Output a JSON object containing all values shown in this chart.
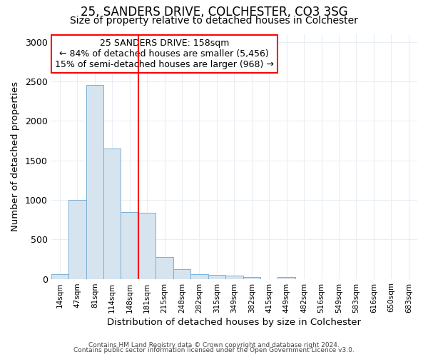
{
  "title1": "25, SANDERS DRIVE, COLCHESTER, CO3 3SG",
  "title2": "Size of property relative to detached houses in Colchester",
  "xlabel": "Distribution of detached houses by size in Colchester",
  "ylabel": "Number of detached properties",
  "categories": [
    "14sqm",
    "47sqm",
    "81sqm",
    "114sqm",
    "148sqm",
    "181sqm",
    "215sqm",
    "248sqm",
    "282sqm",
    "315sqm",
    "349sqm",
    "382sqm",
    "415sqm",
    "449sqm",
    "482sqm",
    "516sqm",
    "549sqm",
    "583sqm",
    "616sqm",
    "650sqm",
    "683sqm"
  ],
  "values": [
    55,
    1000,
    2450,
    1650,
    850,
    840,
    275,
    120,
    55,
    50,
    40,
    20,
    0,
    25,
    0,
    0,
    0,
    0,
    0,
    0,
    0
  ],
  "bar_color": "#d6e4f0",
  "bar_edge_color": "#7aafd4",
  "red_line_x": 5.0,
  "annotation_line1": "25 SANDERS DRIVE: 158sqm",
  "annotation_line2": "← 84% of detached houses are smaller (5,456)",
  "annotation_line3": "15% of semi-detached houses are larger (968) →",
  "annotation_box_color": "white",
  "annotation_box_edge_color": "red",
  "red_line_color": "red",
  "ylim": [
    0,
    3100
  ],
  "yticks": [
    0,
    500,
    1000,
    1500,
    2000,
    2500,
    3000
  ],
  "footer1": "Contains HM Land Registry data © Crown copyright and database right 2024.",
  "footer2": "Contains public sector information licensed under the Open Government Licence v3.0.",
  "bg_color": "white",
  "grid_color": "#e8eef4",
  "title1_fontsize": 12,
  "title2_fontsize": 10,
  "ann_fontsize": 9
}
